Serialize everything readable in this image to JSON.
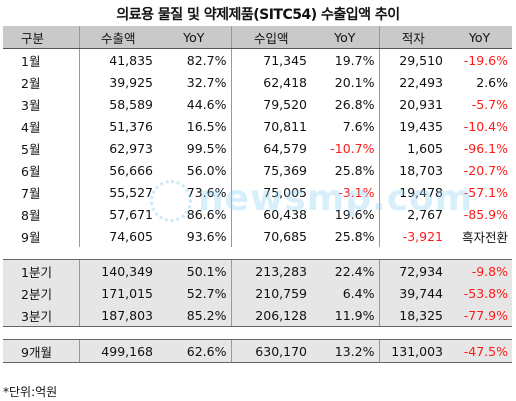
{
  "title": "의료용 물질 및 약제제품(SITC54) 수출입액 추이",
  "headers": [
    "구분",
    "수출액",
    "YoY",
    "수입액",
    "YoY",
    "적자",
    "YoY"
  ],
  "months": [
    [
      "1월",
      "41,835",
      "82.7%",
      "71,345",
      "19.7%",
      "29,510",
      "-19.6%"
    ],
    [
      "2월",
      "39,925",
      "32.7%",
      "62,418",
      "20.1%",
      "22,493",
      "2.6%"
    ],
    [
      "3월",
      "58,589",
      "44.6%",
      "79,520",
      "26.8%",
      "20,931",
      "-5.7%"
    ],
    [
      "4월",
      "51,376",
      "16.5%",
      "70,811",
      "7.6%",
      "19,435",
      "-10.4%"
    ],
    [
      "5월",
      "62,973",
      "99.5%",
      "64,579",
      "-10.7%",
      "1,605",
      "-96.1%"
    ],
    [
      "6월",
      "56,666",
      "56.0%",
      "75,369",
      "25.8%",
      "18,703",
      "-20.7%"
    ],
    [
      "7월",
      "55,527",
      "73.6%",
      "75,005",
      "-3.1%",
      "19,478",
      "-57.1%"
    ],
    [
      "8월",
      "57,671",
      "86.6%",
      "60,438",
      "19.6%",
      "2,767",
      "-85.9%"
    ],
    [
      "9월",
      "74,605",
      "93.6%",
      "70,685",
      "25.8%",
      "-3,921",
      "흑자전환"
    ]
  ],
  "quarters": [
    [
      "1분기",
      "140,349",
      "50.1%",
      "213,283",
      "22.4%",
      "72,934",
      "-9.8%"
    ],
    [
      "2분기",
      "171,015",
      "52.7%",
      "210,759",
      "6.4%",
      "39,744",
      "-53.8%"
    ],
    [
      "3분기",
      "187,803",
      "85.2%",
      "206,128",
      "11.9%",
      "18,325",
      "-77.9%"
    ]
  ],
  "total": [
    "9개월",
    "499,168",
    "62.6%",
    "630,170",
    "13.2%",
    "131,003",
    "-47.5%"
  ],
  "footnote": "*단위:억원",
  "watermark": "newsmp.com",
  "colors": {
    "header_bg": "#c9c9c9",
    "group_bg": "#e6e6e6",
    "negative": "#ff1a1a"
  }
}
